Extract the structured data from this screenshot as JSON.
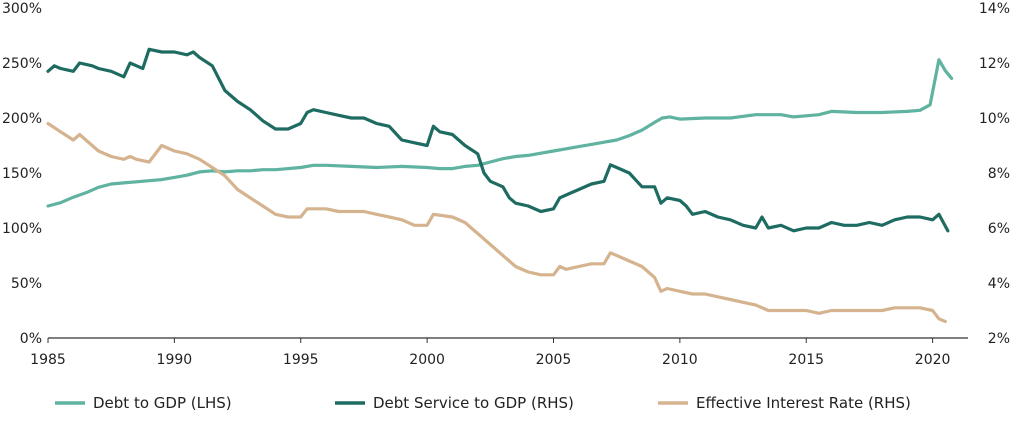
{
  "chart_data": {
    "type": "line",
    "title": "",
    "x_ticks": [
      "1985",
      "1990",
      "1995",
      "2000",
      "2005",
      "2010",
      "2015",
      "2020"
    ],
    "xlim": [
      1985,
      2020.75
    ],
    "left_axis": {
      "ticks": [
        "0%",
        "50%",
        "100%",
        "150%",
        "200%",
        "250%",
        "300%"
      ],
      "range": [
        0,
        300
      ],
      "unit": "%"
    },
    "right_axis": {
      "ticks": [
        "2%",
        "4%",
        "6%",
        "8%",
        "10%",
        "12%",
        "14%"
      ],
      "range": [
        2,
        14
      ],
      "unit": "%"
    },
    "colors": {
      "debt_gdp": "#5fb3a0",
      "debt_service": "#1e6b62",
      "interest": "#d5b38f",
      "axis": "#333333"
    },
    "series": [
      {
        "key": "debt_gdp",
        "name": "Debt to GDP (LHS)",
        "axis": "left",
        "points": [
          [
            1985,
            120
          ],
          [
            1985.5,
            123
          ],
          [
            1986,
            128
          ],
          [
            1986.5,
            132
          ],
          [
            1987,
            137
          ],
          [
            1987.5,
            140
          ],
          [
            1988,
            141
          ],
          [
            1988.5,
            142
          ],
          [
            1989,
            143
          ],
          [
            1989.5,
            144
          ],
          [
            1990,
            146
          ],
          [
            1990.5,
            148
          ],
          [
            1991,
            151
          ],
          [
            1991.5,
            152
          ],
          [
            1992,
            151
          ],
          [
            1992.5,
            152
          ],
          [
            1993,
            152
          ],
          [
            1993.5,
            153
          ],
          [
            1994,
            153
          ],
          [
            1995,
            155
          ],
          [
            1995.5,
            157
          ],
          [
            1996,
            157
          ],
          [
            1997,
            156
          ],
          [
            1998,
            155
          ],
          [
            1999,
            156
          ],
          [
            2000,
            155
          ],
          [
            2000.5,
            154
          ],
          [
            2001,
            154
          ],
          [
            2001.5,
            156
          ],
          [
            2002,
            157
          ],
          [
            2002.5,
            160
          ],
          [
            2003,
            163
          ],
          [
            2003.5,
            165
          ],
          [
            2004,
            166
          ],
          [
            2004.5,
            168
          ],
          [
            2005,
            170
          ],
          [
            2005.5,
            172
          ],
          [
            2006,
            174
          ],
          [
            2006.5,
            176
          ],
          [
            2007,
            178
          ],
          [
            2007.5,
            180
          ],
          [
            2008,
            184
          ],
          [
            2008.5,
            189
          ],
          [
            2009,
            196
          ],
          [
            2009.3,
            200
          ],
          [
            2009.6,
            201
          ],
          [
            2010,
            199
          ],
          [
            2011,
            200
          ],
          [
            2012,
            200
          ],
          [
            2013,
            203
          ],
          [
            2014,
            203
          ],
          [
            2014.5,
            201
          ],
          [
            2015,
            202
          ],
          [
            2015.5,
            203
          ],
          [
            2016,
            206
          ],
          [
            2017,
            205
          ],
          [
            2018,
            205
          ],
          [
            2019,
            206
          ],
          [
            2019.5,
            207
          ],
          [
            2019.9,
            212
          ],
          [
            2020.25,
            253
          ],
          [
            2020.5,
            243
          ],
          [
            2020.75,
            236
          ]
        ]
      },
      {
        "key": "debt_service",
        "name": "Debt Service to GDP (RHS)",
        "axis": "right",
        "points": [
          [
            1985,
            11.7
          ],
          [
            1985.25,
            11.9
          ],
          [
            1985.5,
            11.8
          ],
          [
            1986,
            11.7
          ],
          [
            1986.25,
            12.0
          ],
          [
            1986.75,
            11.9
          ],
          [
            1987,
            11.8
          ],
          [
            1987.5,
            11.7
          ],
          [
            1988,
            11.5
          ],
          [
            1988.25,
            12.0
          ],
          [
            1988.5,
            11.9
          ],
          [
            1988.75,
            11.8
          ],
          [
            1989,
            12.5
          ],
          [
            1989.5,
            12.4
          ],
          [
            1990,
            12.4
          ],
          [
            1990.5,
            12.3
          ],
          [
            1990.75,
            12.4
          ],
          [
            1991,
            12.2
          ],
          [
            1991.5,
            11.9
          ],
          [
            1992,
            11.0
          ],
          [
            1992.5,
            10.6
          ],
          [
            1993,
            10.3
          ],
          [
            1993.5,
            9.9
          ],
          [
            1994,
            9.6
          ],
          [
            1994.5,
            9.6
          ],
          [
            1995,
            9.8
          ],
          [
            1995.25,
            10.2
          ],
          [
            1995.5,
            10.3
          ],
          [
            1996,
            10.2
          ],
          [
            1996.5,
            10.1
          ],
          [
            1997,
            10.0
          ],
          [
            1997.5,
            10.0
          ],
          [
            1998,
            9.8
          ],
          [
            1998.5,
            9.7
          ],
          [
            1999,
            9.2
          ],
          [
            1999.5,
            9.1
          ],
          [
            2000,
            9.0
          ],
          [
            2000.25,
            9.7
          ],
          [
            2000.5,
            9.5
          ],
          [
            2001,
            9.4
          ],
          [
            2001.5,
            9.0
          ],
          [
            2002,
            8.7
          ],
          [
            2002.25,
            8.0
          ],
          [
            2002.5,
            7.7
          ],
          [
            2003,
            7.5
          ],
          [
            2003.25,
            7.1
          ],
          [
            2003.5,
            6.9
          ],
          [
            2004,
            6.8
          ],
          [
            2004.5,
            6.6
          ],
          [
            2005,
            6.7
          ],
          [
            2005.25,
            7.1
          ],
          [
            2005.5,
            7.2
          ],
          [
            2006,
            7.4
          ],
          [
            2006.5,
            7.6
          ],
          [
            2007,
            7.7
          ],
          [
            2007.25,
            8.3
          ],
          [
            2007.5,
            8.2
          ],
          [
            2008,
            8.0
          ],
          [
            2008.5,
            7.5
          ],
          [
            2009,
            7.5
          ],
          [
            2009.25,
            6.9
          ],
          [
            2009.5,
            7.1
          ],
          [
            2010,
            7.0
          ],
          [
            2010.25,
            6.8
          ],
          [
            2010.5,
            6.5
          ],
          [
            2011,
            6.6
          ],
          [
            2011.5,
            6.4
          ],
          [
            2012,
            6.3
          ],
          [
            2012.5,
            6.1
          ],
          [
            2013,
            6.0
          ],
          [
            2013.25,
            6.4
          ],
          [
            2013.5,
            6.0
          ],
          [
            2014,
            6.1
          ],
          [
            2014.5,
            5.9
          ],
          [
            2015,
            6.0
          ],
          [
            2015.5,
            6.0
          ],
          [
            2016,
            6.2
          ],
          [
            2016.5,
            6.1
          ],
          [
            2017,
            6.1
          ],
          [
            2017.5,
            6.2
          ],
          [
            2018,
            6.1
          ],
          [
            2018.5,
            6.3
          ],
          [
            2019,
            6.4
          ],
          [
            2019.5,
            6.4
          ],
          [
            2020,
            6.3
          ],
          [
            2020.25,
            6.5
          ],
          [
            2020.6,
            5.9
          ]
        ]
      },
      {
        "key": "interest",
        "name": "Effective Interest Rate (RHS)",
        "axis": "right",
        "points": [
          [
            1985,
            9.8
          ],
          [
            1985.5,
            9.5
          ],
          [
            1986,
            9.2
          ],
          [
            1986.25,
            9.4
          ],
          [
            1987,
            8.8
          ],
          [
            1987.5,
            8.6
          ],
          [
            1988,
            8.5
          ],
          [
            1988.25,
            8.6
          ],
          [
            1988.5,
            8.5
          ],
          [
            1989,
            8.4
          ],
          [
            1989.5,
            9.0
          ],
          [
            1990,
            8.8
          ],
          [
            1990.5,
            8.7
          ],
          [
            1991,
            8.5
          ],
          [
            1991.5,
            8.2
          ],
          [
            1992,
            7.9
          ],
          [
            1992.5,
            7.4
          ],
          [
            1993,
            7.1
          ],
          [
            1993.5,
            6.8
          ],
          [
            1994,
            6.5
          ],
          [
            1994.5,
            6.4
          ],
          [
            1995,
            6.4
          ],
          [
            1995.25,
            6.7
          ],
          [
            1995.5,
            6.7
          ],
          [
            1996,
            6.7
          ],
          [
            1996.5,
            6.6
          ],
          [
            1997,
            6.6
          ],
          [
            1997.5,
            6.6
          ],
          [
            1998,
            6.5
          ],
          [
            1998.5,
            6.4
          ],
          [
            1999,
            6.3
          ],
          [
            1999.5,
            6.1
          ],
          [
            2000,
            6.1
          ],
          [
            2000.25,
            6.5
          ],
          [
            2001,
            6.4
          ],
          [
            2001.5,
            6.2
          ],
          [
            2002,
            5.8
          ],
          [
            2002.5,
            5.4
          ],
          [
            2003,
            5.0
          ],
          [
            2003.5,
            4.6
          ],
          [
            2004,
            4.4
          ],
          [
            2004.5,
            4.3
          ],
          [
            2005,
            4.3
          ],
          [
            2005.25,
            4.6
          ],
          [
            2005.5,
            4.5
          ],
          [
            2006,
            4.6
          ],
          [
            2006.5,
            4.7
          ],
          [
            2007,
            4.7
          ],
          [
            2007.25,
            5.1
          ],
          [
            2007.5,
            5.0
          ],
          [
            2008,
            4.8
          ],
          [
            2008.5,
            4.6
          ],
          [
            2009,
            4.2
          ],
          [
            2009.25,
            3.7
          ],
          [
            2009.5,
            3.8
          ],
          [
            2010,
            3.7
          ],
          [
            2010.5,
            3.6
          ],
          [
            2011,
            3.6
          ],
          [
            2011.5,
            3.5
          ],
          [
            2012,
            3.4
          ],
          [
            2012.5,
            3.3
          ],
          [
            2013,
            3.2
          ],
          [
            2013.5,
            3.0
          ],
          [
            2014,
            3.0
          ],
          [
            2014.5,
            3.0
          ],
          [
            2015,
            3.0
          ],
          [
            2015.5,
            2.9
          ],
          [
            2016,
            3.0
          ],
          [
            2016.5,
            3.0
          ],
          [
            2017,
            3.0
          ],
          [
            2017.5,
            3.0
          ],
          [
            2018,
            3.0
          ],
          [
            2018.5,
            3.1
          ],
          [
            2019,
            3.1
          ],
          [
            2019.5,
            3.1
          ],
          [
            2020,
            3.0
          ],
          [
            2020.25,
            2.7
          ],
          [
            2020.5,
            2.6
          ]
        ]
      }
    ]
  }
}
